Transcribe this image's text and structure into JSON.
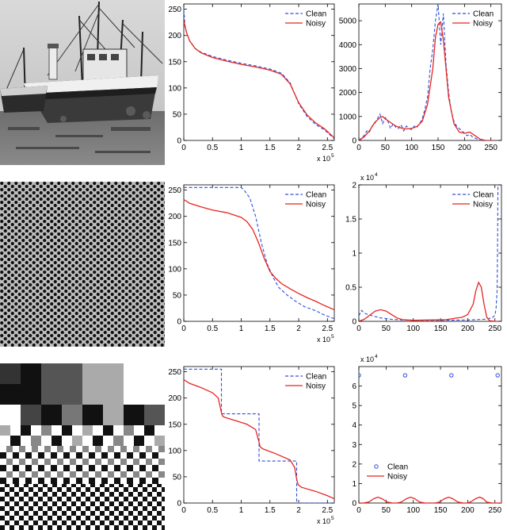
{
  "rows": [
    {
      "image": "boat-photo",
      "sorted": {
        "type": "line",
        "xlim": [
          0,
          2.62
        ],
        "ylim": [
          0,
          260
        ],
        "xticks": [
          0,
          0.5,
          1,
          1.5,
          2,
          2.5
        ],
        "xtick_labels": [
          "0",
          "0.5",
          "1",
          "1.5",
          "2",
          "2.5"
        ],
        "yticks": [
          0,
          50,
          100,
          150,
          200,
          250
        ],
        "ytick_labels": [
          "0",
          "50",
          "100",
          "150",
          "200",
          "250"
        ],
        "x_exponent": "x 10",
        "x_exponent_power": "5",
        "series": [
          {
            "name": "Clean",
            "style": "dashed",
            "color": "#2d4fd8",
            "x": [
              0,
              0.02,
              0.05,
              0.1,
              0.2,
              0.3,
              0.5,
              0.75,
              1,
              1.25,
              1.5,
              1.7,
              1.85,
              2,
              2.15,
              2.3,
              2.45,
              2.55,
              2.62
            ],
            "y": [
              250,
              220,
              205,
              190,
              175,
              168,
              160,
              153,
              147,
              142,
              136,
              128,
              110,
              70,
              45,
              30,
              20,
              10,
              3
            ]
          },
          {
            "name": "Noisy",
            "style": "solid",
            "color": "#e8251f",
            "x": [
              0,
              0.02,
              0.05,
              0.1,
              0.2,
              0.3,
              0.5,
              0.75,
              1,
              1.25,
              1.5,
              1.7,
              1.85,
              2,
              2.15,
              2.3,
              2.45,
              2.55,
              2.62
            ],
            "y": [
              228,
              218,
              205,
              190,
              175,
              167,
              158,
              151,
              145,
              140,
              134,
              126,
              108,
              72,
              48,
              33,
              22,
              12,
              5
            ]
          }
        ],
        "legend": [
          "Clean",
          "Noisy"
        ]
      },
      "hist": {
        "type": "line",
        "xlim": [
          0,
          270
        ],
        "ylim": [
          0,
          5700
        ],
        "xticks": [
          0,
          50,
          100,
          150,
          200,
          250
        ],
        "xtick_labels": [
          "0",
          "50",
          "100",
          "150",
          "200",
          "250"
        ],
        "yticks": [
          0,
          1000,
          2000,
          3000,
          4000,
          5000
        ],
        "ytick_labels": [
          "0",
          "1000",
          "2000",
          "3000",
          "4000",
          "5000"
        ],
        "series": [
          {
            "name": "Clean",
            "style": "dashed",
            "color": "#2d4fd8",
            "x": [
              0,
              10,
              15,
              20,
              25,
              30,
              35,
              40,
              45,
              50,
              55,
              60,
              65,
              70,
              75,
              80,
              85,
              90,
              95,
              100,
              105,
              110,
              115,
              120,
              125,
              130,
              135,
              140,
              145,
              150,
              155,
              160,
              165,
              170,
              175,
              180,
              185,
              190,
              195,
              200,
              205,
              210,
              215,
              220,
              225,
              230,
              240,
              250,
              255
            ],
            "y": [
              0,
              200,
              400,
              350,
              600,
              700,
              900,
              1100,
              700,
              950,
              800,
              500,
              700,
              550,
              500,
              650,
              400,
              600,
              500,
              450,
              600,
              550,
              700,
              900,
              1300,
              1800,
              3000,
              3800,
              5000,
              5700,
              4000,
              5300,
              3200,
              2000,
              1200,
              800,
              600,
              500,
              400,
              300,
              200,
              250,
              150,
              100,
              50,
              0,
              0,
              0,
              0
            ]
          },
          {
            "name": "Noisy",
            "style": "solid",
            "color": "#e8251f",
            "x": [
              0,
              10,
              20,
              30,
              40,
              45,
              50,
              60,
              70,
              80,
              90,
              100,
              110,
              120,
              130,
              140,
              145,
              150,
              155,
              160,
              165,
              170,
              180,
              190,
              200,
              210,
              220,
              230,
              240,
              250,
              255
            ],
            "y": [
              0,
              150,
              400,
              750,
              950,
              1000,
              900,
              750,
              600,
              520,
              480,
              500,
              580,
              800,
              1500,
              3000,
              4300,
              4850,
              4950,
              4200,
              3000,
              1800,
              700,
              350,
              300,
              350,
              200,
              50,
              0,
              0,
              0
            ]
          }
        ],
        "legend": [
          "Clean",
          "Noisy"
        ]
      }
    },
    {
      "image": "dot-pattern",
      "sorted": {
        "type": "line",
        "xlim": [
          0,
          2.62
        ],
        "ylim": [
          0,
          260
        ],
        "xticks": [
          0,
          0.5,
          1,
          1.5,
          2,
          2.5
        ],
        "xtick_labels": [
          "0",
          "0.5",
          "1",
          "1.5",
          "2",
          "2.5"
        ],
        "yticks": [
          0,
          50,
          100,
          150,
          200,
          250
        ],
        "ytick_labels": [
          "0",
          "50",
          "100",
          "150",
          "200",
          "250"
        ],
        "x_exponent": "x 10",
        "x_exponent_power": "5",
        "series": [
          {
            "name": "Clean",
            "style": "dashed",
            "color": "#2d4fd8",
            "x": [
              0,
              0.5,
              1,
              1.05,
              1.15,
              1.25,
              1.35,
              1.45,
              1.55,
              1.65,
              1.8,
              1.95,
              2.1,
              2.3,
              2.45,
              2.62
            ],
            "y": [
              255,
              255,
              255,
              250,
              235,
              200,
              150,
              110,
              85,
              65,
              50,
              38,
              28,
              20,
              12,
              5
            ]
          },
          {
            "name": "Noisy",
            "style": "solid",
            "color": "#e8251f",
            "x": [
              0,
              0.1,
              0.3,
              0.5,
              0.75,
              1,
              1.1,
              1.2,
              1.3,
              1.4,
              1.5,
              1.6,
              1.7,
              1.85,
              2,
              2.15,
              2.3,
              2.45,
              2.62
            ],
            "y": [
              232,
              225,
              218,
              212,
              207,
              198,
              190,
              175,
              150,
              120,
              95,
              82,
              72,
              62,
              53,
              45,
              38,
              30,
              22
            ]
          }
        ],
        "legend": [
          "Clean",
          "Noisy"
        ]
      },
      "hist": {
        "type": "line",
        "xlim": [
          0,
          262
        ],
        "ylim": [
          0,
          20000
        ],
        "xticks": [
          0,
          50,
          100,
          150,
          200,
          250
        ],
        "xtick_labels": [
          "0",
          "50",
          "100",
          "150",
          "200",
          "250"
        ],
        "yticks": [
          0,
          5000,
          10000,
          15000,
          20000
        ],
        "ytick_labels": [
          "0",
          "0.5",
          "1",
          "1.5",
          "2"
        ],
        "y_exponent": "x 10",
        "y_exponent_power": "4",
        "series": [
          {
            "name": "Clean",
            "style": "dashed",
            "color": "#2d4fd8",
            "x": [
              0,
              5,
              10,
              20,
              30,
              40,
              50,
              60,
              80,
              100,
              150,
              200,
              230,
              245,
              250,
              252,
              254,
              255,
              255.5,
              256
            ],
            "y": [
              800,
              1600,
              1200,
              900,
              700,
              500,
              400,
              300,
              200,
              150,
              150,
              200,
              300,
              500,
              900,
              1800,
              4500,
              12000,
              19500,
              20000
            ]
          },
          {
            "name": "Noisy",
            "style": "solid",
            "color": "#e8251f",
            "x": [
              0,
              10,
              20,
              30,
              40,
              50,
              60,
              70,
              80,
              100,
              130,
              160,
              190,
              200,
              210,
              215,
              220,
              225,
              230,
              235,
              240,
              250,
              256
            ],
            "y": [
              0,
              300,
              900,
              1500,
              1700,
              1500,
              1000,
              500,
              250,
              150,
              200,
              250,
              600,
              1000,
              2500,
              4500,
              5700,
              5000,
              2500,
              600,
              100,
              0,
              0
            ]
          }
        ],
        "legend": [
          "Clean",
          "Noisy"
        ]
      }
    },
    {
      "image": "block-pattern",
      "sorted": {
        "type": "line",
        "xlim": [
          0,
          2.62
        ],
        "ylim": [
          0,
          260
        ],
        "xticks": [
          0,
          0.5,
          1,
          1.5,
          2,
          2.5
        ],
        "xtick_labels": [
          "0",
          "0.5",
          "1",
          "1.5",
          "2",
          "2.5"
        ],
        "yticks": [
          0,
          50,
          100,
          150,
          200,
          250
        ],
        "ytick_labels": [
          "0",
          "50",
          "100",
          "150",
          "200",
          "250"
        ],
        "x_exponent": "x 10",
        "x_exponent_power": "5",
        "series": [
          {
            "name": "Clean",
            "style": "dashed",
            "color": "#2d4fd8",
            "x": [
              0,
              0.655,
              0.655,
              1.31,
              1.31,
              1.965,
              1.965,
              2.62
            ],
            "y": [
              255,
              255,
              170,
              170,
              80,
              80,
              0,
              0
            ]
          },
          {
            "name": "Noisy",
            "style": "solid",
            "color": "#e8251f",
            "x": [
              0,
              0.1,
              0.3,
              0.5,
              0.6,
              0.64,
              0.66,
              0.68,
              0.72,
              0.9,
              1.1,
              1.25,
              1.3,
              1.33,
              1.38,
              1.6,
              1.85,
              1.93,
              1.96,
              1.99,
              2.05,
              2.3,
              2.5,
              2.62
            ],
            "y": [
              235,
              228,
              220,
              210,
              200,
              180,
              170,
              165,
              163,
              157,
              150,
              140,
              120,
              107,
              103,
              94,
              82,
              68,
              48,
              35,
              30,
              22,
              14,
              8
            ]
          }
        ],
        "legend": [
          "Clean",
          "Noisy"
        ]
      },
      "hist": {
        "type": "scatter",
        "xlim": [
          0,
          262
        ],
        "ylim": [
          0,
          70000
        ],
        "xticks": [
          0,
          50,
          100,
          150,
          200,
          250
        ],
        "xtick_labels": [
          "0",
          "50",
          "100",
          "150",
          "200",
          "250"
        ],
        "yticks": [
          0,
          10000,
          20000,
          30000,
          40000,
          50000,
          60000
        ],
        "ytick_labels": [
          "0",
          "1",
          "2",
          "3",
          "4",
          "5",
          "6"
        ],
        "y_exponent": "x 10",
        "y_exponent_power": "4",
        "series": [
          {
            "name": "Clean",
            "style": "markers",
            "color": "#2d4fd8",
            "x": [
              0,
              85,
              170,
              255
            ],
            "y": [
              65500,
              65500,
              65500,
              65500
            ]
          },
          {
            "name": "Noisy",
            "style": "solid",
            "color": "#e8251f",
            "x": [
              0,
              8,
              18,
              28,
              35,
              42,
              52,
              62,
              70,
              78,
              88,
              95,
              102,
              112,
              122,
              140,
              148,
              158,
              165,
              172,
              182,
              192,
              198,
              205,
              215,
              222,
              228,
              235,
              245,
              262
            ],
            "y": [
              0,
              0,
              500,
              2300,
              3000,
              2300,
              500,
              0,
              0,
              500,
              2300,
              3000,
              2300,
              500,
              0,
              0,
              500,
              2300,
              3000,
              2300,
              500,
              0,
              0,
              500,
              2300,
              3000,
              2300,
              500,
              0,
              0
            ]
          }
        ],
        "legend": [
          "Clean",
          "Noisy"
        ]
      }
    }
  ]
}
